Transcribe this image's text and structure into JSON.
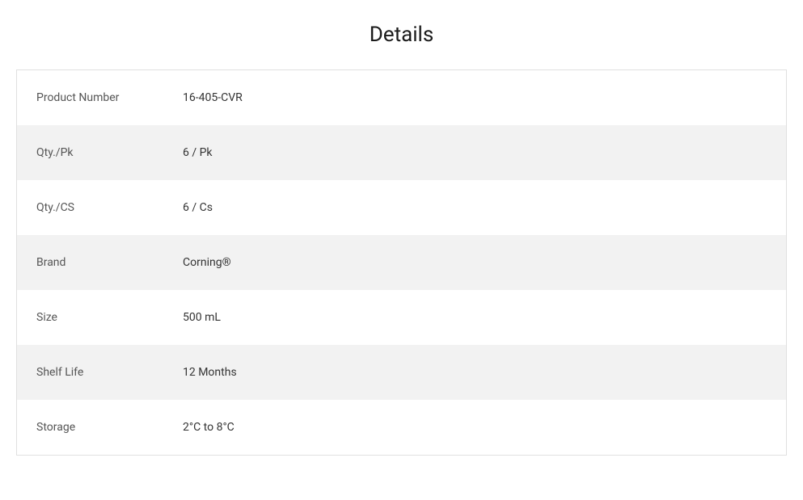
{
  "title": "Details",
  "rows": [
    {
      "label": "Product Number",
      "value": "16-405-CVR"
    },
    {
      "label": "Qty./Pk",
      "value": "6 / Pk"
    },
    {
      "label": "Qty./CS",
      "value": "6 / Cs"
    },
    {
      "label": "Brand",
      "value": "Corning®"
    },
    {
      "label": "Size",
      "value": "500 mL"
    },
    {
      "label": "Shelf Life",
      "value": "12 Months"
    },
    {
      "label": "Storage",
      "value": "2°C to 8°C"
    }
  ],
  "styles": {
    "title_fontsize": 26,
    "title_color": "#1a1a1a",
    "label_fontsize": 14,
    "label_color": "#555555",
    "value_fontsize": 14,
    "value_color": "#333333",
    "row_odd_bg": "#ffffff",
    "row_even_bg": "#f2f2f2",
    "border_color": "#e0e0e0",
    "label_column_width": 205
  }
}
